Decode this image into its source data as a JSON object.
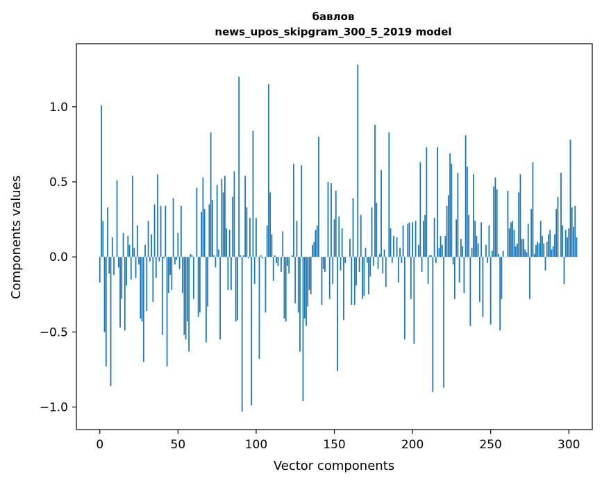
{
  "chart_data": {
    "type": "bar",
    "title": "бавлов",
    "subtitle": "news_upos_skipgram_300_5_2019 model",
    "xlabel": "Vector components",
    "ylabel": "Components values",
    "xlim": [
      -15,
      315
    ],
    "ylim": [
      -1.15,
      1.42
    ],
    "xticks": [
      0,
      50,
      100,
      150,
      200,
      250,
      300
    ],
    "yticks": [
      -1.0,
      -0.5,
      0.0,
      0.5,
      1.0
    ],
    "ytick_labels": [
      "−1.0",
      "−0.5",
      "0.0",
      "0.5",
      "1.0"
    ],
    "bar_color": "#1f77b4",
    "values": [
      -0.17,
      1.01,
      0.24,
      -0.5,
      -0.73,
      0.33,
      -0.11,
      -0.86,
      0.13,
      -0.12,
      0.0,
      0.51,
      -0.07,
      -0.47,
      -0.28,
      0.16,
      -0.49,
      -0.19,
      0.14,
      0.08,
      -0.15,
      0.54,
      0.06,
      -0.14,
      0.21,
      -0.05,
      -0.41,
      -0.43,
      -0.7,
      0.08,
      -0.36,
      0.24,
      -0.03,
      0.15,
      -0.3,
      0.35,
      -0.14,
      0.55,
      -0.03,
      0.34,
      -0.52,
      -0.01,
      0.34,
      -0.73,
      -0.24,
      -0.12,
      -0.22,
      0.39,
      -0.05,
      -0.02,
      0.16,
      -0.08,
      0.34,
      -0.24,
      -0.52,
      -0.55,
      -0.43,
      -0.63,
      0.02,
      0.01,
      -0.28,
      0.0,
      0.46,
      -0.4,
      -0.37,
      0.3,
      0.53,
      0.32,
      -0.57,
      -0.33,
      0.35,
      0.83,
      0.38,
      0.01,
      -0.07,
      0.48,
      0.05,
      -0.55,
      0.52,
      0.43,
      0.54,
      0.19,
      -0.22,
      0.18,
      -0.22,
      0.4,
      0.57,
      -0.43,
      -0.42,
      1.2,
      0.01,
      -1.03,
      0.01,
      0.54,
      0.33,
      -0.01,
      0.26,
      -0.99,
      0.84,
      -0.18,
      0.26,
      0.0,
      -0.68,
      0.01,
      -0.01,
      0.0,
      -0.37,
      0.21,
      1.15,
      0.43,
      0.15,
      -0.16,
      0.01,
      -0.04,
      -0.06,
      0.0,
      -0.1,
      0.17,
      -0.41,
      -0.43,
      -0.06,
      -0.11,
      0.0,
      0.01,
      0.62,
      -0.31,
      0.24,
      -0.37,
      -0.63,
      0.61,
      -0.96,
      -0.41,
      -0.46,
      -0.33,
      -0.22,
      -0.25,
      0.08,
      0.1,
      0.18,
      0.21,
      0.8,
      0.0,
      -0.32,
      -0.08,
      -0.1,
      0.0,
      0.5,
      -0.28,
      0.49,
      -0.18,
      0.25,
      0.44,
      -0.76,
      0.27,
      -0.09,
      0.19,
      -0.42,
      -0.04,
      0.0,
      0.0,
      0.12,
      -0.32,
      0.39,
      -0.32,
      -0.19,
      1.28,
      -0.1,
      0.28,
      -0.28,
      -0.26,
      0.06,
      -0.04,
      -0.25,
      -0.13,
      0.33,
      -0.06,
      0.88,
      0.36,
      -0.08,
      0.02,
      0.58,
      -0.11,
      0.05,
      -0.2,
      0.0,
      0.83,
      0.19,
      -0.04,
      0.14,
      0.0,
      0.13,
      -0.17,
      0.06,
      -0.04,
      0.21,
      -0.55,
      0.0,
      0.22,
      0.23,
      -0.28,
      0.23,
      -0.58,
      0.24,
      0.0,
      0.08,
      0.63,
      -0.1,
      0.24,
      0.28,
      0.73,
      -0.18,
      0.01,
      0.01,
      -0.9,
      0.26,
      -0.04,
      0.73,
      0.06,
      0.14,
      0.08,
      -0.87,
      0.14,
      0.34,
      0.41,
      0.69,
      0.62,
      -0.05,
      -0.28,
      0.25,
      0.56,
      -0.17,
      0.12,
      0.07,
      -0.24,
      0.81,
      0.6,
      0.28,
      -0.46,
      0.06,
      0.55,
      0.24,
      0.14,
      0.09,
      -0.3,
      0.23,
      -0.4,
      0.0,
      0.08,
      -0.04,
      0.21,
      -0.45,
      0.04,
      0.47,
      0.53,
      0.45,
      0.02,
      -0.49,
      -0.28,
      0.04,
      0.0,
      0.0,
      0.44,
      0.19,
      0.23,
      0.24,
      0.18,
      0.07,
      0.09,
      0.43,
      0.55,
      0.12,
      0.12,
      0.05,
      0.03,
      0.22,
      -0.28,
      0.32,
      0.63,
      0.02,
      0.08,
      0.1,
      0.09,
      0.24,
      0.14,
      0.09,
      -0.09,
      0.1,
      0.15,
      0.18,
      0.05,
      0.07,
      0.15,
      0.32,
      0.4,
      0.0,
      0.56,
      0.21,
      -0.18,
      0.18,
      0.13,
      0.19,
      0.78,
      0.33,
      0.2,
      0.34,
      0.13
    ]
  }
}
